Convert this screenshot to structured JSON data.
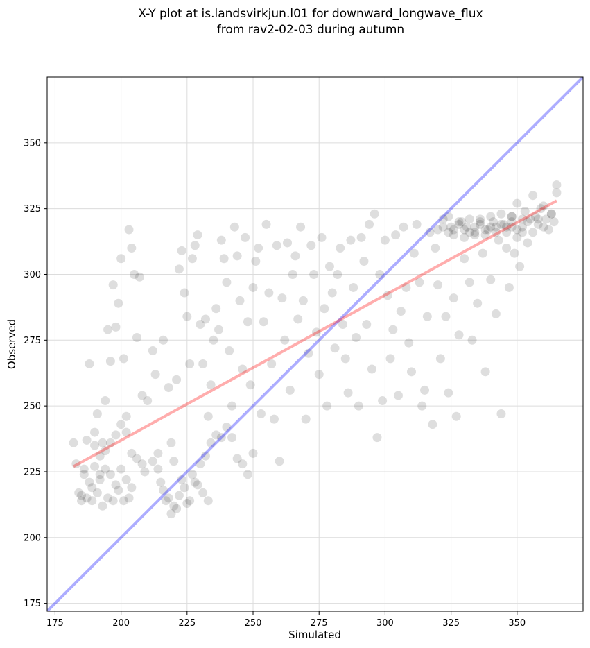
{
  "chart_data": {
    "type": "scatter",
    "title_lines": [
      "X-Y plot at is.landsvirkjun.l01 for downward_longwave_flux",
      "from rav2-02-03 during autumn"
    ],
    "xlabel": "Simulated",
    "ylabel": "Observed",
    "xlim": [
      172,
      375
    ],
    "ylim": [
      172,
      375
    ],
    "xticks": [
      175,
      200,
      225,
      250,
      275,
      300,
      325,
      350
    ],
    "yticks": [
      175,
      200,
      225,
      250,
      275,
      300,
      325,
      350
    ],
    "grid": true,
    "colors": {
      "points": "#000000",
      "regression": "#ff0000",
      "identity": "#0000ff",
      "grid": "#dcdcdc"
    },
    "regression_line": {
      "x": [
        182,
        365
      ],
      "y": [
        227,
        328
      ]
    },
    "identity_line": {
      "x": [
        172,
        375
      ],
      "y": [
        172,
        375
      ]
    },
    "points": [
      [
        182,
        236
      ],
      [
        183,
        228
      ],
      [
        184,
        217
      ],
      [
        185,
        214
      ],
      [
        186,
        226
      ],
      [
        187,
        237
      ],
      [
        188,
        266
      ],
      [
        189,
        219
      ],
      [
        190,
        240
      ],
      [
        191,
        247
      ],
      [
        192,
        224
      ],
      [
        193,
        236
      ],
      [
        194,
        252
      ],
      [
        195,
        279
      ],
      [
        196,
        267
      ],
      [
        197,
        296
      ],
      [
        198,
        280
      ],
      [
        199,
        289
      ],
      [
        200,
        306
      ],
      [
        201,
        268
      ],
      [
        202,
        246
      ],
      [
        203,
        317
      ],
      [
        204,
        310
      ],
      [
        205,
        300
      ],
      [
        206,
        276
      ],
      [
        207,
        299
      ],
      [
        208,
        254
      ],
      [
        209,
        225
      ],
      [
        210,
        252
      ],
      [
        212,
        271
      ],
      [
        213,
        262
      ],
      [
        214,
        232
      ],
      [
        216,
        275
      ],
      [
        218,
        257
      ],
      [
        219,
        236
      ],
      [
        220,
        229
      ],
      [
        221,
        260
      ],
      [
        222,
        302
      ],
      [
        223,
        309
      ],
      [
        224,
        293
      ],
      [
        225,
        284
      ],
      [
        226,
        266
      ],
      [
        227,
        306
      ],
      [
        228,
        311
      ],
      [
        229,
        315
      ],
      [
        230,
        281
      ],
      [
        231,
        266
      ],
      [
        232,
        283
      ],
      [
        233,
        246
      ],
      [
        234,
        258
      ],
      [
        235,
        275
      ],
      [
        236,
        287
      ],
      [
        237,
        279
      ],
      [
        238,
        313
      ],
      [
        239,
        306
      ],
      [
        240,
        297
      ],
      [
        241,
        271
      ],
      [
        242,
        250
      ],
      [
        243,
        318
      ],
      [
        244,
        307
      ],
      [
        245,
        290
      ],
      [
        246,
        264
      ],
      [
        247,
        314
      ],
      [
        248,
        282
      ],
      [
        249,
        258
      ],
      [
        250,
        295
      ],
      [
        251,
        305
      ],
      [
        252,
        310
      ],
      [
        253,
        247
      ],
      [
        254,
        282
      ],
      [
        255,
        319
      ],
      [
        256,
        293
      ],
      [
        257,
        266
      ],
      [
        258,
        245
      ],
      [
        259,
        311
      ],
      [
        260,
        229
      ],
      [
        261,
        291
      ],
      [
        262,
        275
      ],
      [
        263,
        312
      ],
      [
        264,
        256
      ],
      [
        265,
        300
      ],
      [
        266,
        307
      ],
      [
        267,
        283
      ],
      [
        268,
        318
      ],
      [
        269,
        290
      ],
      [
        270,
        245
      ],
      [
        271,
        270
      ],
      [
        272,
        311
      ],
      [
        273,
        300
      ],
      [
        274,
        278
      ],
      [
        275,
        262
      ],
      [
        276,
        314
      ],
      [
        277,
        287
      ],
      [
        278,
        250
      ],
      [
        279,
        303
      ],
      [
        280,
        293
      ],
      [
        281,
        272
      ],
      [
        282,
        300
      ],
      [
        283,
        310
      ],
      [
        284,
        281
      ],
      [
        285,
        268
      ],
      [
        286,
        255
      ],
      [
        287,
        313
      ],
      [
        288,
        295
      ],
      [
        289,
        276
      ],
      [
        290,
        250
      ],
      [
        291,
        314
      ],
      [
        292,
        305
      ],
      [
        293,
        281
      ],
      [
        294,
        319
      ],
      [
        295,
        264
      ],
      [
        296,
        323
      ],
      [
        297,
        238
      ],
      [
        298,
        300
      ],
      [
        299,
        252
      ],
      [
        300,
        313
      ],
      [
        301,
        292
      ],
      [
        302,
        268
      ],
      [
        303,
        279
      ],
      [
        304,
        315
      ],
      [
        305,
        254
      ],
      [
        306,
        286
      ],
      [
        307,
        318
      ],
      [
        308,
        295
      ],
      [
        309,
        274
      ],
      [
        310,
        263
      ],
      [
        311,
        308
      ],
      [
        312,
        319
      ],
      [
        313,
        297
      ],
      [
        314,
        250
      ],
      [
        315,
        256
      ],
      [
        316,
        284
      ],
      [
        317,
        316
      ],
      [
        318,
        243
      ],
      [
        319,
        310
      ],
      [
        320,
        296
      ],
      [
        321,
        268
      ],
      [
        322,
        321
      ],
      [
        323,
        284
      ],
      [
        324,
        255
      ],
      [
        325,
        318
      ],
      [
        326,
        291
      ],
      [
        327,
        246
      ],
      [
        328,
        277
      ],
      [
        329,
        320
      ],
      [
        330,
        306
      ],
      [
        331,
        318
      ],
      [
        332,
        297
      ],
      [
        333,
        275
      ],
      [
        334,
        315
      ],
      [
        335,
        289
      ],
      [
        336,
        321
      ],
      [
        337,
        308
      ],
      [
        338,
        263
      ],
      [
        339,
        317
      ],
      [
        340,
        298
      ],
      [
        341,
        320
      ],
      [
        342,
        285
      ],
      [
        343,
        313
      ],
      [
        344,
        247
      ],
      [
        345,
        319
      ],
      [
        346,
        310
      ],
      [
        347,
        295
      ],
      [
        348,
        322
      ],
      [
        349,
        308
      ],
      [
        350,
        317
      ],
      [
        351,
        303
      ],
      [
        352,
        318
      ],
      [
        353,
        324
      ],
      [
        354,
        312
      ],
      [
        355,
        321
      ],
      [
        356,
        316
      ],
      [
        357,
        322
      ],
      [
        358,
        319
      ],
      [
        359,
        325
      ],
      [
        360,
        318
      ],
      [
        361,
        321
      ],
      [
        362,
        317
      ],
      [
        363,
        323
      ],
      [
        364,
        320
      ],
      [
        365,
        331
      ],
      [
        365,
        334
      ],
      [
        363,
        323
      ],
      [
        360,
        326
      ],
      [
        358,
        321
      ],
      [
        356,
        330
      ],
      [
        354,
        320
      ],
      [
        352,
        316
      ],
      [
        350,
        327
      ],
      [
        348,
        318
      ],
      [
        185,
        216
      ],
      [
        187,
        215
      ],
      [
        189,
        214
      ],
      [
        191,
        217
      ],
      [
        193,
        212
      ],
      [
        195,
        215
      ],
      [
        197,
        214
      ],
      [
        199,
        218
      ],
      [
        201,
        214
      ],
      [
        203,
        215
      ],
      [
        186,
        224
      ],
      [
        188,
        221
      ],
      [
        190,
        227
      ],
      [
        192,
        222
      ],
      [
        194,
        226
      ],
      [
        196,
        224
      ],
      [
        198,
        220
      ],
      [
        200,
        226
      ],
      [
        202,
        222
      ],
      [
        204,
        219
      ],
      [
        190,
        235
      ],
      [
        192,
        231
      ],
      [
        194,
        233
      ],
      [
        196,
        236
      ],
      [
        198,
        239
      ],
      [
        200,
        243
      ],
      [
        202,
        240
      ],
      [
        204,
        232
      ],
      [
        206,
        230
      ],
      [
        208,
        228
      ],
      [
        212,
        229
      ],
      [
        214,
        226
      ],
      [
        216,
        218
      ],
      [
        218,
        215
      ],
      [
        220,
        212
      ],
      [
        222,
        216
      ],
      [
        224,
        219
      ],
      [
        226,
        214
      ],
      [
        228,
        221
      ],
      [
        230,
        228
      ],
      [
        232,
        231
      ],
      [
        234,
        236
      ],
      [
        236,
        239
      ],
      [
        238,
        238
      ],
      [
        240,
        242
      ],
      [
        242,
        238
      ],
      [
        244,
        230
      ],
      [
        246,
        228
      ],
      [
        248,
        224
      ],
      [
        250,
        232
      ],
      [
        215,
        221
      ],
      [
        217,
        214
      ],
      [
        219,
        209
      ],
      [
        221,
        211
      ],
      [
        223,
        222
      ],
      [
        225,
        213
      ],
      [
        227,
        224
      ],
      [
        229,
        220
      ],
      [
        231,
        217
      ],
      [
        233,
        214
      ],
      [
        320,
        317
      ],
      [
        322,
        318
      ],
      [
        324,
        316
      ],
      [
        326,
        317
      ],
      [
        328,
        319
      ],
      [
        330,
        317
      ],
      [
        332,
        316
      ],
      [
        334,
        318
      ],
      [
        336,
        319
      ],
      [
        338,
        317
      ],
      [
        340,
        318
      ],
      [
        342,
        316
      ],
      [
        344,
        319
      ],
      [
        346,
        318
      ],
      [
        348,
        320
      ],
      [
        326,
        315
      ],
      [
        330,
        314
      ],
      [
        334,
        316
      ],
      [
        338,
        315
      ],
      [
        342,
        318
      ],
      [
        324,
        322
      ],
      [
        328,
        320
      ],
      [
        332,
        321
      ],
      [
        336,
        320
      ],
      [
        340,
        322
      ],
      [
        344,
        323
      ],
      [
        348,
        322
      ],
      [
        352,
        321
      ],
      [
        346,
        316
      ],
      [
        350,
        314
      ]
    ]
  }
}
